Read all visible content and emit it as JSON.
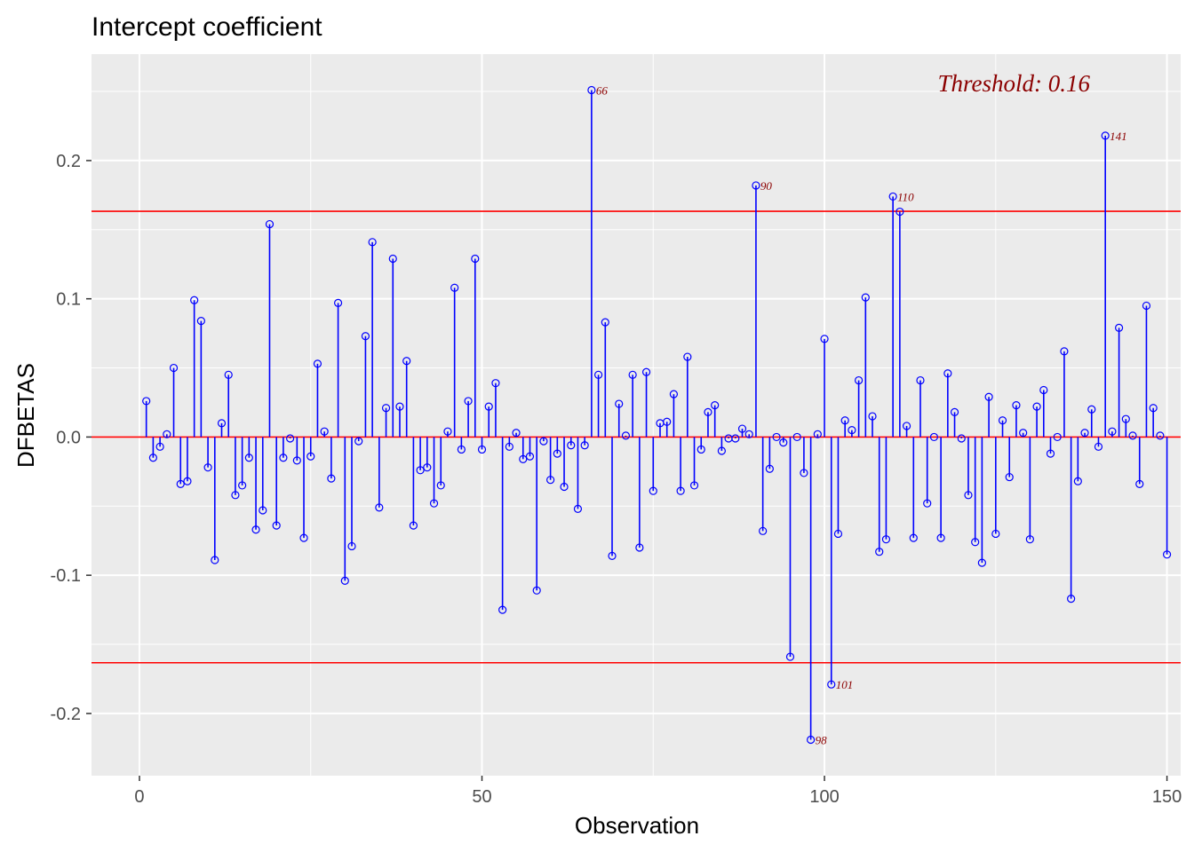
{
  "chart_data": {
    "type": "scatter",
    "title": "Intercept coefficient",
    "xlabel": "Observation",
    "ylabel": "DFBETAS",
    "xlim": [
      -7,
      152
    ],
    "ylim": [
      -0.245,
      0.277
    ],
    "x_ticks": [
      0,
      50,
      100,
      150
    ],
    "x_tick_labels": [
      "0",
      "50",
      "100",
      "150"
    ],
    "y_ticks": [
      -0.2,
      -0.1,
      0.0,
      0.1,
      0.2
    ],
    "y_tick_labels": [
      "-0.2",
      "-0.1",
      "0.0",
      "0.1",
      "0.2"
    ],
    "grid": true,
    "threshold": 0.1633,
    "threshold_label": "Threshold: 0.16",
    "colors": {
      "stem": "#0000ff",
      "threshold_line": "#ff0000",
      "label": "#8b0000",
      "panel": "#ebebeb",
      "grid": "#ffffff"
    },
    "values": [
      0.026,
      -0.015,
      -0.007,
      0.002,
      0.05,
      -0.034,
      -0.032,
      0.099,
      0.084,
      -0.022,
      -0.089,
      0.01,
      0.045,
      -0.042,
      -0.035,
      -0.015,
      -0.067,
      -0.053,
      0.154,
      -0.064,
      -0.015,
      -0.001,
      -0.017,
      -0.073,
      -0.014,
      0.053,
      0.004,
      -0.03,
      0.097,
      -0.104,
      -0.079,
      -0.003,
      0.073,
      0.141,
      -0.051,
      0.021,
      0.129,
      0.022,
      0.055,
      -0.064,
      -0.024,
      -0.022,
      -0.048,
      -0.035,
      0.004,
      0.108,
      -0.009,
      0.026,
      0.129,
      -0.009,
      0.022,
      0.039,
      -0.125,
      -0.007,
      0.003,
      -0.016,
      -0.014,
      -0.111,
      -0.003,
      -0.031,
      -0.012,
      -0.036,
      -0.006,
      -0.052,
      -0.006,
      0.251,
      0.045,
      0.083,
      -0.086,
      0.024,
      0.001,
      0.045,
      -0.08,
      0.047,
      -0.039,
      0.01,
      0.011,
      0.031,
      -0.039,
      0.058,
      -0.035,
      -0.009,
      0.018,
      0.023,
      -0.01,
      -0.001,
      -0.001,
      0.006,
      0.002,
      0.182,
      -0.068,
      -0.023,
      0.0,
      -0.004,
      -0.159,
      0.0,
      -0.026,
      -0.219,
      0.002,
      0.071,
      -0.179,
      -0.07,
      0.012,
      0.005,
      0.041,
      0.101,
      0.015,
      -0.083,
      -0.074,
      0.174,
      0.163,
      0.008,
      -0.073,
      0.041,
      -0.048,
      0.0,
      -0.073,
      0.046,
      0.018,
      -0.001,
      -0.042,
      -0.076,
      -0.091,
      0.029,
      -0.07,
      0.012,
      -0.029,
      0.023,
      0.003,
      -0.074,
      0.022,
      0.034,
      -0.012,
      0.0,
      0.062,
      -0.117,
      -0.032,
      0.003,
      0.02,
      -0.007,
      0.218,
      0.004,
      0.079,
      0.013,
      0.001,
      -0.034,
      0.095,
      0.021,
      0.001,
      -0.085
    ],
    "labeled_points": [
      {
        "obs": 66,
        "label": "66"
      },
      {
        "obs": 90,
        "label": "90"
      },
      {
        "obs": 98,
        "label": "98"
      },
      {
        "obs": 101,
        "label": "101"
      },
      {
        "obs": 110,
        "label": "110"
      },
      {
        "obs": 141,
        "label": "141"
      }
    ]
  }
}
